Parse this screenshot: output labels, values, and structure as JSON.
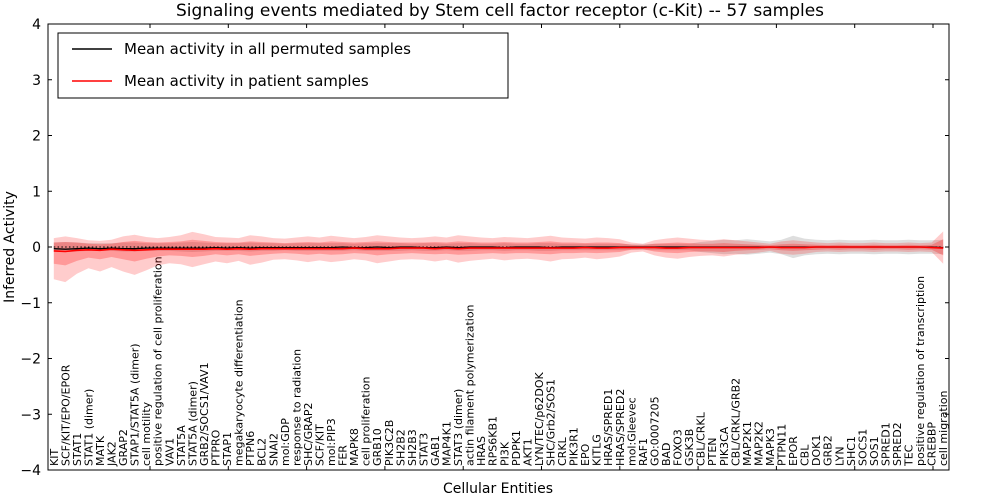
{
  "chart_data": {
    "type": "line",
    "title": "Signaling events mediated by Stem cell factor receptor (c-Kit) -- 57 samples",
    "xlabel": "Cellular Entities",
    "ylabel": "Inferred Activity",
    "ylim": [
      -4,
      4
    ],
    "yticks": [
      {
        "v": 4,
        "label": "4"
      },
      {
        "v": 3,
        "label": "3"
      },
      {
        "v": 2,
        "label": "2"
      },
      {
        "v": 1,
        "label": "1"
      },
      {
        "v": 0,
        "label": "0"
      },
      {
        "v": -1,
        "label": "−1"
      },
      {
        "v": -2,
        "label": "−2"
      },
      {
        "v": -3,
        "label": "−3"
      },
      {
        "v": -4,
        "label": "−4"
      }
    ],
    "grid": false,
    "legend_position": "upper left",
    "zero_line": {
      "y": 0,
      "style": "dotted",
      "color": "#000000"
    },
    "categories": [
      "KIT",
      "SCF/KIT/EPO/EPOR",
      "STAT1",
      "STAT1 (dimer)",
      "MATK",
      "JAK2",
      "GRAP2",
      "STAP1/STAT5A (dimer)",
      "cell motility",
      "positive regulation of cell proliferation",
      "VAV1",
      "STAT5A",
      "STAT5A (dimer)",
      "GRB2/SOCS1/VAV1",
      "PTPRO",
      "STAP1",
      "megakaryocyte differentiation",
      "PTPN6",
      "BCL2",
      "SNAI2",
      "mol:GDP",
      "response to radiation",
      "SHC/GRAP2",
      "SCF/KIT",
      "mol:PIP3",
      "FER",
      "MAPK8",
      "cell proliferation",
      "GRB10",
      "PIK3C2B",
      "SH2B2",
      "SH2B3",
      "STAT3",
      "GAB1",
      "MAP4K1",
      "STAT3 (dimer)",
      "actin filament polymerization",
      "HRAS",
      "RPS6KB1",
      "PI3K",
      "PDPK1",
      "AKT1",
      "LYN/TEC/p62DOK",
      "SHC/Grb2/SOS1",
      "CRKL",
      "PIK3R1",
      "EPO",
      "KITLG",
      "HRAS/SPRED1",
      "HRAS/SPRED2",
      "mol:Gleevec",
      "RAF1",
      "GO:0007205",
      "BAD",
      "FOXO3",
      "GSK3B",
      "CBL/CRKL",
      "PTEN",
      "PIK3CA",
      "CBL/CRKL/GRB2",
      "MAP2K1",
      "MAP2K2",
      "MAPK3",
      "PTPN11",
      "EPOR",
      "CBL",
      "DOK1",
      "GRB2",
      "LYN",
      "SHC1",
      "SOCS1",
      "SOS1",
      "SPRED1",
      "SPRED2",
      "TEC",
      "positive regulation of transcription",
      "CREBBP",
      "cell migration"
    ],
    "series": [
      {
        "name": "Mean activity in all permuted samples",
        "color": "#000000",
        "values": [
          -0.03,
          -0.04,
          -0.03,
          -0.02,
          -0.03,
          -0.02,
          -0.03,
          -0.03,
          -0.02,
          -0.02,
          -0.02,
          -0.02,
          -0.02,
          -0.02,
          -0.01,
          -0.02,
          -0.01,
          -0.02,
          -0.01,
          -0.01,
          -0.01,
          -0.01,
          -0.01,
          -0.01,
          -0.01,
          0,
          -0.01,
          -0.01,
          0,
          -0.01,
          0,
          0,
          -0.01,
          -0.01,
          0,
          -0.01,
          0,
          0,
          0,
          -0.01,
          0,
          0,
          0,
          -0.01,
          0,
          0,
          0,
          0,
          0,
          0,
          0,
          0,
          0,
          0,
          0,
          0,
          0,
          0,
          0,
          0,
          0,
          0,
          0,
          0,
          0,
          0,
          0,
          0,
          0,
          0,
          0,
          0,
          0,
          0,
          0,
          0,
          0,
          -0.01
        ]
      },
      {
        "name": "Mean activity in patient samples",
        "color": "#ff0000",
        "values": [
          -0.07,
          -0.08,
          -0.06,
          -0.05,
          -0.06,
          -0.04,
          -0.05,
          -0.06,
          -0.05,
          -0.04,
          -0.04,
          -0.04,
          -0.04,
          -0.04,
          -0.03,
          -0.04,
          -0.03,
          -0.04,
          -0.03,
          -0.03,
          -0.03,
          -0.03,
          -0.03,
          -0.03,
          -0.03,
          -0.03,
          -0.02,
          -0.03,
          -0.03,
          -0.03,
          -0.02,
          -0.02,
          -0.02,
          -0.03,
          -0.02,
          -0.03,
          -0.02,
          -0.02,
          -0.02,
          -0.02,
          -0.02,
          -0.02,
          -0.02,
          -0.02,
          -0.02,
          -0.02,
          -0.01,
          -0.02,
          -0.02,
          -0.01,
          -0.01,
          -0.01,
          -0.01,
          -0.02,
          -0.02,
          -0.01,
          -0.01,
          -0.01,
          -0.01,
          -0.01,
          -0.01,
          -0.01,
          0,
          -0.01,
          -0.01,
          -0.01,
          0,
          0,
          0,
          0,
          0,
          0,
          0,
          0,
          0,
          0,
          -0.01,
          -0.02
        ]
      }
    ],
    "bands": [
      {
        "name": "permuted-samples-spread",
        "color": "rgba(0,0,0,0.13)",
        "upper": [
          0.08,
          0.09,
          0.08,
          0.07,
          0.07,
          0.07,
          0.08,
          0.08,
          0.07,
          0.07,
          0.07,
          0.08,
          0.09,
          0.08,
          0.07,
          0.07,
          0.07,
          0.08,
          0.07,
          0.07,
          0.06,
          0.07,
          0.07,
          0.07,
          0.07,
          0.07,
          0.06,
          0.07,
          0.07,
          0.07,
          0.07,
          0.06,
          0.07,
          0.07,
          0.06,
          0.07,
          0.07,
          0.06,
          0.06,
          0.07,
          0.06,
          0.06,
          0.07,
          0.07,
          0.06,
          0.06,
          0.06,
          0.06,
          0.06,
          0.06,
          0.05,
          0.05,
          0.06,
          0.06,
          0.06,
          0.06,
          0.09,
          0.11,
          0.13,
          0.12,
          0.14,
          0.12,
          0.1,
          0.13,
          0.2,
          0.15,
          0.13,
          0.12,
          0.13,
          0.12,
          0.12,
          0.13,
          0.12,
          0.12,
          0.13,
          0.12,
          0.12,
          0.13
        ],
        "lower": [
          -0.08,
          -0.09,
          -0.08,
          -0.07,
          -0.07,
          -0.07,
          -0.08,
          -0.08,
          -0.07,
          -0.07,
          -0.07,
          -0.08,
          -0.09,
          -0.08,
          -0.07,
          -0.07,
          -0.07,
          -0.08,
          -0.07,
          -0.07,
          -0.06,
          -0.07,
          -0.07,
          -0.07,
          -0.07,
          -0.07,
          -0.06,
          -0.07,
          -0.07,
          -0.07,
          -0.07,
          -0.06,
          -0.07,
          -0.07,
          -0.06,
          -0.07,
          -0.07,
          -0.06,
          -0.06,
          -0.07,
          -0.06,
          -0.06,
          -0.07,
          -0.07,
          -0.06,
          -0.06,
          -0.06,
          -0.06,
          -0.06,
          -0.06,
          -0.05,
          -0.05,
          -0.06,
          -0.06,
          -0.06,
          -0.06,
          -0.09,
          -0.11,
          -0.13,
          -0.12,
          -0.14,
          -0.12,
          -0.1,
          -0.13,
          -0.2,
          -0.15,
          -0.13,
          -0.12,
          -0.13,
          -0.12,
          -0.12,
          -0.13,
          -0.12,
          -0.12,
          -0.13,
          -0.12,
          -0.12,
          -0.13
        ]
      },
      {
        "name": "patient-samples-spread-outer",
        "color": "rgba(255,0,0,0.20)",
        "upper": [
          0.16,
          0.19,
          0.16,
          0.12,
          0.11,
          0.13,
          0.19,
          0.22,
          0.18,
          0.16,
          0.18,
          0.21,
          0.27,
          0.23,
          0.18,
          0.17,
          0.16,
          0.21,
          0.19,
          0.16,
          0.15,
          0.17,
          0.19,
          0.17,
          0.2,
          0.18,
          0.16,
          0.18,
          0.21,
          0.19,
          0.17,
          0.16,
          0.17,
          0.19,
          0.17,
          0.21,
          0.19,
          0.17,
          0.16,
          0.18,
          0.17,
          0.16,
          0.18,
          0.2,
          0.17,
          0.16,
          0.15,
          0.17,
          0.16,
          0.14,
          0.08,
          0.06,
          0.12,
          0.15,
          0.17,
          0.15,
          0.13,
          0.12,
          0.14,
          0.12,
          0.1,
          0.08,
          0.06,
          0.1,
          0.12,
          0.1,
          0.08,
          0.07,
          0.08,
          0.07,
          0.07,
          0.08,
          0.07,
          0.07,
          0.08,
          0.07,
          0.08,
          0.28
        ],
        "lower": [
          -0.58,
          -0.63,
          -0.48,
          -0.38,
          -0.44,
          -0.36,
          -0.44,
          -0.5,
          -0.42,
          -0.33,
          -0.29,
          -0.31,
          -0.36,
          -0.31,
          -0.26,
          -0.29,
          -0.25,
          -0.32,
          -0.28,
          -0.23,
          -0.22,
          -0.24,
          -0.27,
          -0.24,
          -0.27,
          -0.25,
          -0.22,
          -0.24,
          -0.29,
          -0.26,
          -0.23,
          -0.22,
          -0.23,
          -0.26,
          -0.23,
          -0.28,
          -0.25,
          -0.23,
          -0.21,
          -0.24,
          -0.22,
          -0.21,
          -0.23,
          -0.26,
          -0.22,
          -0.21,
          -0.19,
          -0.22,
          -0.2,
          -0.17,
          -0.1,
          -0.08,
          -0.15,
          -0.19,
          -0.21,
          -0.18,
          -0.16,
          -0.15,
          -0.17,
          -0.14,
          -0.12,
          -0.1,
          -0.07,
          -0.12,
          -0.14,
          -0.12,
          -0.09,
          -0.08,
          -0.09,
          -0.08,
          -0.08,
          -0.09,
          -0.08,
          -0.08,
          -0.09,
          -0.08,
          -0.09,
          -0.3
        ]
      },
      {
        "name": "patient-samples-spread-inner",
        "color": "rgba(255,0,0,0.25)",
        "upper": [
          0.08,
          0.09,
          0.08,
          0.06,
          0.05,
          0.06,
          0.09,
          0.11,
          0.09,
          0.08,
          0.09,
          0.1,
          0.13,
          0.11,
          0.09,
          0.08,
          0.08,
          0.1,
          0.09,
          0.08,
          0.07,
          0.08,
          0.09,
          0.08,
          0.1,
          0.09,
          0.08,
          0.09,
          0.1,
          0.09,
          0.08,
          0.08,
          0.08,
          0.09,
          0.08,
          0.1,
          0.09,
          0.08,
          0.08,
          0.09,
          0.08,
          0.08,
          0.09,
          0.1,
          0.08,
          0.08,
          0.07,
          0.08,
          0.08,
          0.07,
          0.04,
          0.03,
          0.06,
          0.07,
          0.08,
          0.07,
          0.06,
          0.06,
          0.07,
          0.06,
          0.05,
          0.04,
          0.03,
          0.05,
          0.06,
          0.05,
          0.04,
          0.03,
          0.04,
          0.03,
          0.03,
          0.04,
          0.03,
          0.03,
          0.04,
          0.03,
          0.04,
          0.14
        ],
        "lower": [
          -0.3,
          -0.33,
          -0.25,
          -0.19,
          -0.22,
          -0.18,
          -0.22,
          -0.26,
          -0.21,
          -0.17,
          -0.15,
          -0.16,
          -0.18,
          -0.16,
          -0.13,
          -0.15,
          -0.13,
          -0.16,
          -0.14,
          -0.12,
          -0.11,
          -0.12,
          -0.14,
          -0.12,
          -0.14,
          -0.13,
          -0.11,
          -0.12,
          -0.15,
          -0.13,
          -0.12,
          -0.11,
          -0.12,
          -0.13,
          -0.12,
          -0.14,
          -0.13,
          -0.12,
          -0.11,
          -0.12,
          -0.11,
          -0.11,
          -0.12,
          -0.13,
          -0.11,
          -0.11,
          -0.1,
          -0.11,
          -0.1,
          -0.09,
          -0.05,
          -0.04,
          -0.08,
          -0.1,
          -0.11,
          -0.09,
          -0.08,
          -0.08,
          -0.09,
          -0.07,
          -0.06,
          -0.05,
          -0.04,
          -0.06,
          -0.07,
          -0.06,
          -0.05,
          -0.04,
          -0.05,
          -0.04,
          -0.04,
          -0.05,
          -0.04,
          -0.04,
          -0.05,
          -0.04,
          -0.05,
          -0.15
        ]
      }
    ]
  }
}
